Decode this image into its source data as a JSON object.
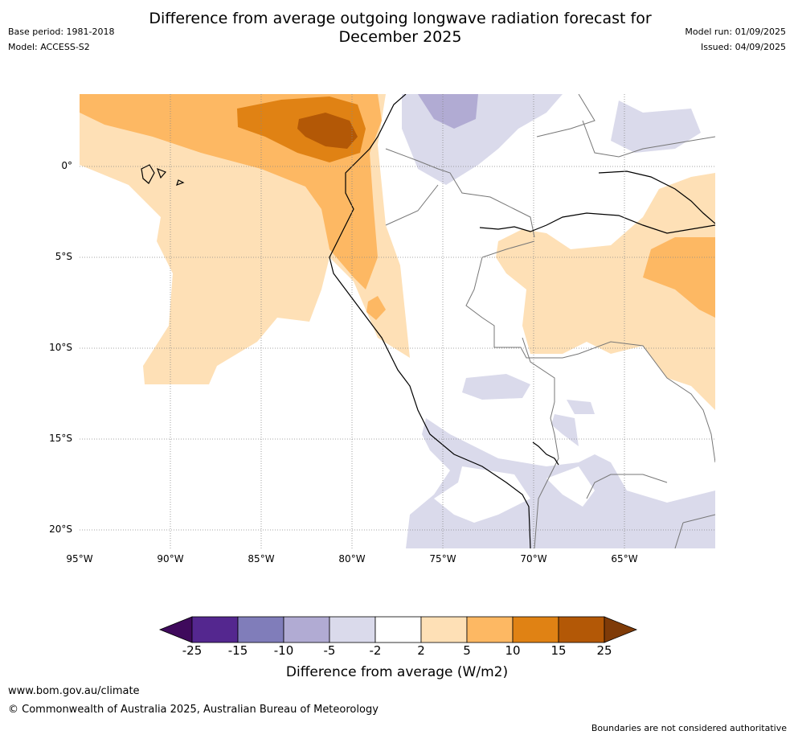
{
  "title": "Difference from average outgoing longwave radiation forecast for December 2025",
  "header_left": {
    "base_period": "Base period: 1981-2018",
    "model": "Model: ACCESS-S2"
  },
  "header_right": {
    "model_run": "Model run: 01/09/2025",
    "issued": "Issued: 04/09/2025"
  },
  "map": {
    "lat_labels": [
      "0°",
      "5°S",
      "10°S",
      "15°S",
      "20°S"
    ],
    "lon_labels": [
      "95°W",
      "90°W",
      "85°W",
      "80°W",
      "75°W",
      "70°W",
      "65°W"
    ]
  },
  "colorbar": {
    "title": "Difference from average (W/m2)",
    "ticks": [
      "-25",
      "-15",
      "-10",
      "-5",
      "-2",
      "2",
      "5",
      "10",
      "15",
      "25"
    ],
    "colors": [
      "#3f0a5c",
      "#54278f",
      "#807dba",
      "#b1abd3",
      "#dadaeb",
      "#ffffff",
      "#fee0b6",
      "#fdb863",
      "#e08214",
      "#b35806",
      "#7f3b08"
    ]
  },
  "footer": {
    "url": "www.bom.gov.au/climate",
    "copyright": "© Commonwealth of Australia 2025, Australian Bureau of Meteorology",
    "note": "Boundaries are not considered authoritative"
  }
}
